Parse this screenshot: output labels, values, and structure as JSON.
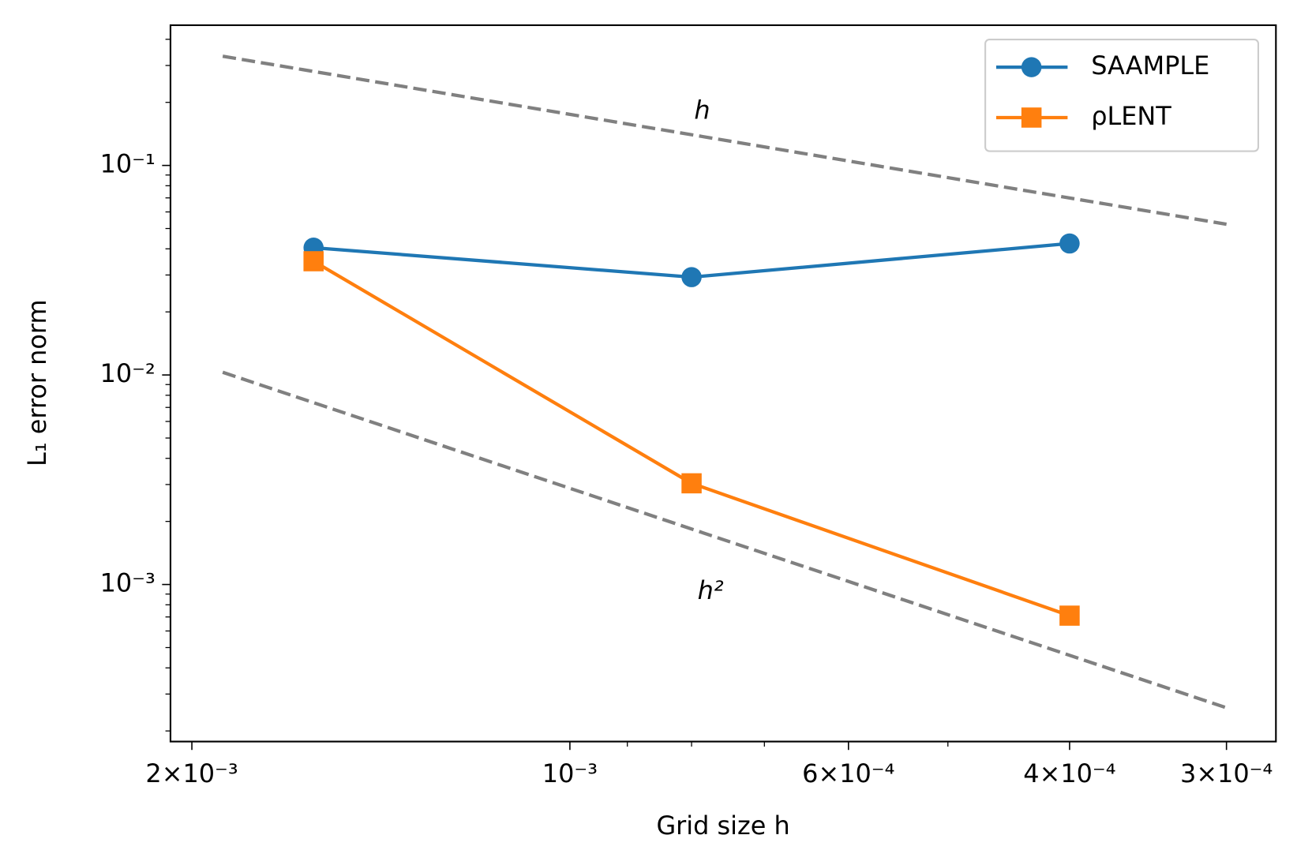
{
  "chart_data": {
    "type": "line",
    "xlabel": "Grid size h",
    "ylabel": "L₁ error norm",
    "xscale": "log",
    "yscale": "log",
    "x_inverted": true,
    "xlim": [
      0.00208,
      0.000274
    ],
    "ylim": [
      0.000178,
      0.467
    ],
    "xticks": [
      {
        "value": 0.002,
        "label": "2×10⁻³"
      },
      {
        "value": 0.001,
        "label": "10⁻³"
      },
      {
        "value": 0.0006,
        "label": "6×10⁻⁴"
      },
      {
        "value": 0.0004,
        "label": "4×10⁻⁴"
      },
      {
        "value": 0.0003,
        "label": "3×10⁻⁴"
      }
    ],
    "xticks_minor": [
      0.0009,
      0.0008,
      0.0007,
      0.0005
    ],
    "yticks": [
      {
        "value": 0.001,
        "label": "10⁻³"
      },
      {
        "value": 0.01,
        "label": "10⁻²"
      },
      {
        "value": 0.1,
        "label": "10⁻¹"
      }
    ],
    "yticks_minor": [
      0.0002,
      0.0003,
      0.0004,
      0.0005,
      0.0006,
      0.0007,
      0.0008,
      0.0009,
      0.002,
      0.003,
      0.004,
      0.005,
      0.006,
      0.007,
      0.008,
      0.009,
      0.02,
      0.03,
      0.04,
      0.05,
      0.06,
      0.07,
      0.08,
      0.09,
      0.2,
      0.3,
      0.4
    ],
    "legend": "upper right",
    "series": [
      {
        "name": "SAAMPLE",
        "color": "#1f77b4",
        "marker": "circle",
        "x": [
          0.0016,
          0.0008,
          0.0004
        ],
        "values": [
          0.0405,
          0.0293,
          0.0424
        ]
      },
      {
        "name": "ρLENT",
        "color": "#ff7f0e",
        "marker": "square",
        "x": [
          0.0016,
          0.0008,
          0.0004
        ],
        "values": [
          0.0349,
          0.00304,
          0.00071
        ]
      }
    ],
    "reference_lines": [
      {
        "color": "#808080",
        "x": [
          0.00189,
          0.0003
        ],
        "values": [
          0.332,
          0.0524
        ]
      },
      {
        "color": "#808080",
        "x": [
          0.00189,
          0.0003
        ],
        "values": [
          0.0103,
          0.000258
        ]
      }
    ],
    "annotations": [
      "h",
      "h²"
    ]
  }
}
